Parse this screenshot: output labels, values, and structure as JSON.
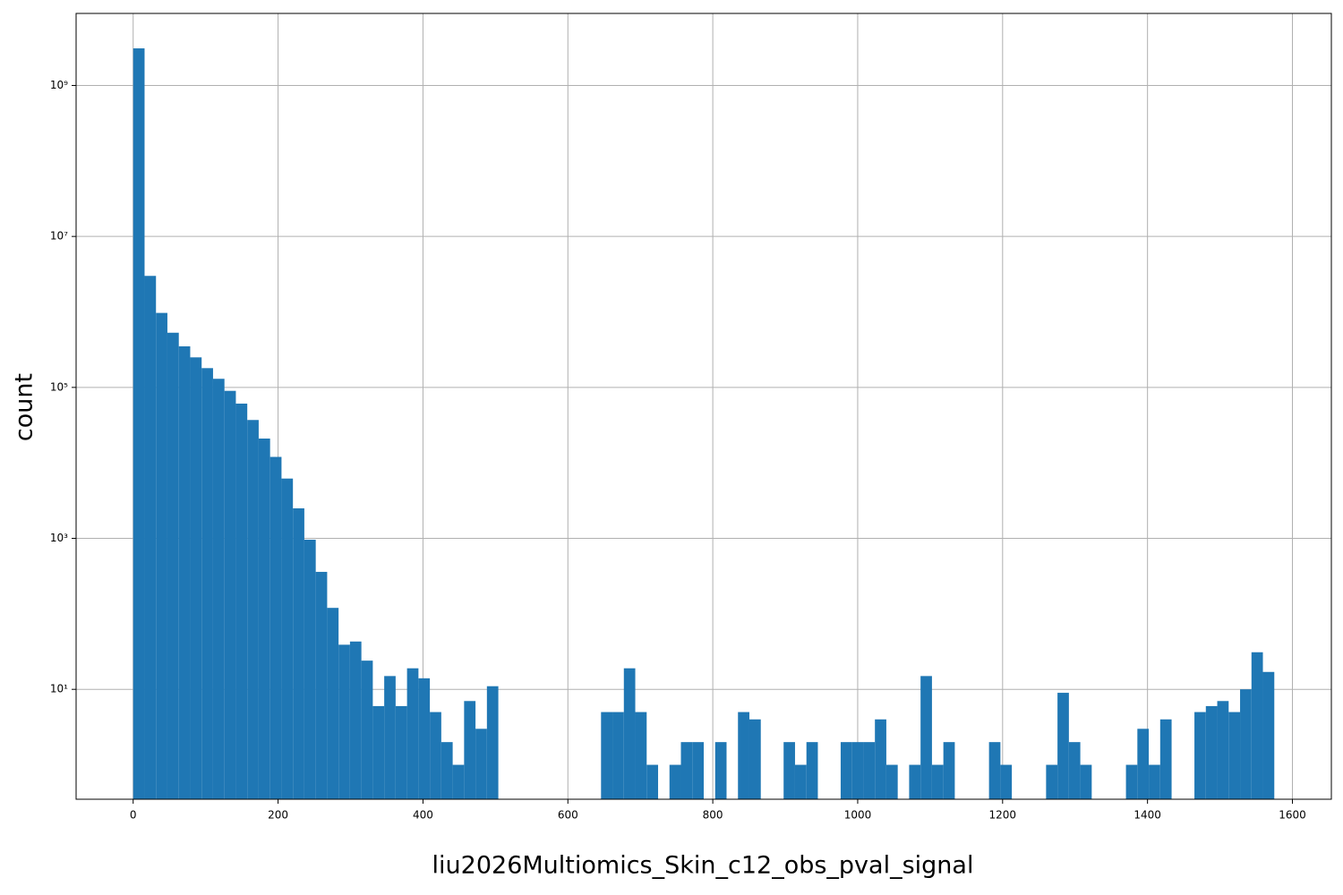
{
  "chart_data": {
    "type": "histogram",
    "x_label": "liu2026Multiomics_Skin_c12_obs_pval_signal",
    "y_label": "count",
    "color": "#1f77b4",
    "grid": true,
    "y_scale": "log",
    "bins": [
      0,
      15.75,
      31.5,
      47.25,
      63,
      78.75,
      94.5,
      110.25,
      126,
      141.75,
      157.5,
      173.25,
      189,
      204.75,
      220.5,
      236.25,
      252,
      267.75,
      283.5,
      299.25,
      315,
      330.75,
      346.5,
      362.25,
      378,
      393.75,
      409.5,
      425.25,
      441,
      456.75,
      472.5,
      488.25,
      504,
      519.75,
      535.5,
      551.25,
      567,
      582.75,
      598.5,
      614.25,
      630,
      645.75,
      661.5,
      677.25,
      693,
      708.75,
      724.5,
      740.25,
      756,
      771.75,
      787.5,
      803.25,
      819,
      834.75,
      850.5,
      866.25,
      882,
      897.75,
      913.5,
      929.25,
      945,
      960.75,
      976.5,
      992.25,
      1008,
      1023.75,
      1039.5,
      1055.25,
      1071,
      1086.75,
      1102.5,
      1118.25,
      1134,
      1149.75,
      1165.5,
      1181.25,
      1197,
      1212.75,
      1228.5,
      1244.25,
      1260,
      1275.75,
      1291.5,
      1307.25,
      1323,
      1338.75,
      1354.5,
      1370.25,
      1386,
      1401.75,
      1417.5,
      1433.25,
      1449,
      1464.75,
      1480.5,
      1496.25,
      1512,
      1527.75,
      1543.5,
      1559.25,
      1575
    ],
    "values": [
      3100000000,
      3000000,
      970000,
      530000,
      350000,
      250000,
      180000,
      130000,
      90000,
      61000,
      37000,
      21000,
      12000,
      6200,
      2500,
      960,
      360,
      120,
      39,
      43,
      24,
      6,
      15,
      6,
      19,
      14,
      5,
      2,
      1,
      7,
      3,
      11,
      0,
      0,
      0,
      0,
      0,
      0,
      0,
      0,
      0,
      5,
      5,
      19,
      5,
      1,
      0,
      1,
      2,
      2,
      0,
      2,
      0,
      5,
      4,
      0,
      0,
      2,
      1,
      2,
      0,
      0,
      2,
      2,
      2,
      4,
      1,
      0,
      1,
      15,
      1,
      2,
      0,
      0,
      0,
      2,
      1,
      0,
      0,
      0,
      1,
      9,
      2,
      1,
      0,
      0,
      0,
      1,
      3,
      1,
      4,
      0,
      0,
      5,
      6,
      7,
      5,
      10,
      31,
      17
    ],
    "xlim": [
      -78.75,
      1653.75
    ],
    "xticks": [
      0,
      200,
      400,
      600,
      800,
      1000,
      1200,
      1400,
      1600
    ],
    "ylim": [
      0.35,
      9000000000
    ],
    "yticks": [
      {
        "value": 10,
        "label": "10¹"
      },
      {
        "value": 1000,
        "label": "10³"
      },
      {
        "value": 100000,
        "label": "10⁵"
      },
      {
        "value": 10000000,
        "label": "10⁷"
      },
      {
        "value": 1000000000,
        "label": "10⁹"
      }
    ]
  }
}
